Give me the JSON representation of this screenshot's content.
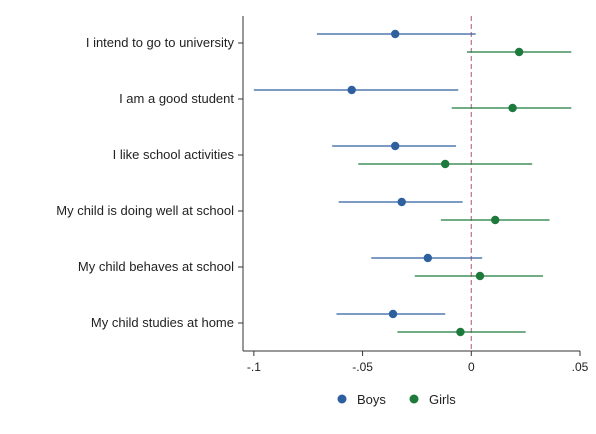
{
  "chart_data": {
    "type": "scatter",
    "subtype": "coefficient-plot",
    "title": "",
    "xlabel": "",
    "ylabel": "",
    "xlim": [
      -0.105,
      0.05
    ],
    "x_ticks": [
      -0.1,
      -0.05,
      0,
      0.05
    ],
    "x_tick_labels": [
      "-.1",
      "-.05",
      "0",
      ".05"
    ],
    "reference_line": {
      "x": 0,
      "style": "dashed",
      "color": "#c0718f"
    },
    "grid": false,
    "legend": {
      "position": "bottom"
    },
    "categories": [
      "I intend to go to university",
      "I am a good student",
      "I like school activities",
      "My child is doing well at school",
      "My child behaves at school",
      "My child studies at home"
    ],
    "series": [
      {
        "name": "Boys",
        "color": "#2e5f9e",
        "points": [
          {
            "estimate": -0.035,
            "ci_low": -0.071,
            "ci_high": 0.002
          },
          {
            "estimate": -0.055,
            "ci_low": -0.1,
            "ci_high": -0.006
          },
          {
            "estimate": -0.035,
            "ci_low": -0.064,
            "ci_high": -0.007
          },
          {
            "estimate": -0.032,
            "ci_low": -0.061,
            "ci_high": -0.004
          },
          {
            "estimate": -0.02,
            "ci_low": -0.046,
            "ci_high": 0.005
          },
          {
            "estimate": -0.036,
            "ci_low": -0.062,
            "ci_high": -0.012
          }
        ]
      },
      {
        "name": "Girls",
        "color": "#1e7a3c",
        "points": [
          {
            "estimate": 0.022,
            "ci_low": -0.002,
            "ci_high": 0.046
          },
          {
            "estimate": 0.019,
            "ci_low": -0.009,
            "ci_high": 0.046
          },
          {
            "estimate": -0.012,
            "ci_low": -0.052,
            "ci_high": 0.028
          },
          {
            "estimate": 0.011,
            "ci_low": -0.014,
            "ci_high": 0.036
          },
          {
            "estimate": 0.004,
            "ci_low": -0.026,
            "ci_high": 0.033
          },
          {
            "estimate": -0.005,
            "ci_low": -0.034,
            "ci_high": 0.025
          }
        ]
      }
    ]
  }
}
